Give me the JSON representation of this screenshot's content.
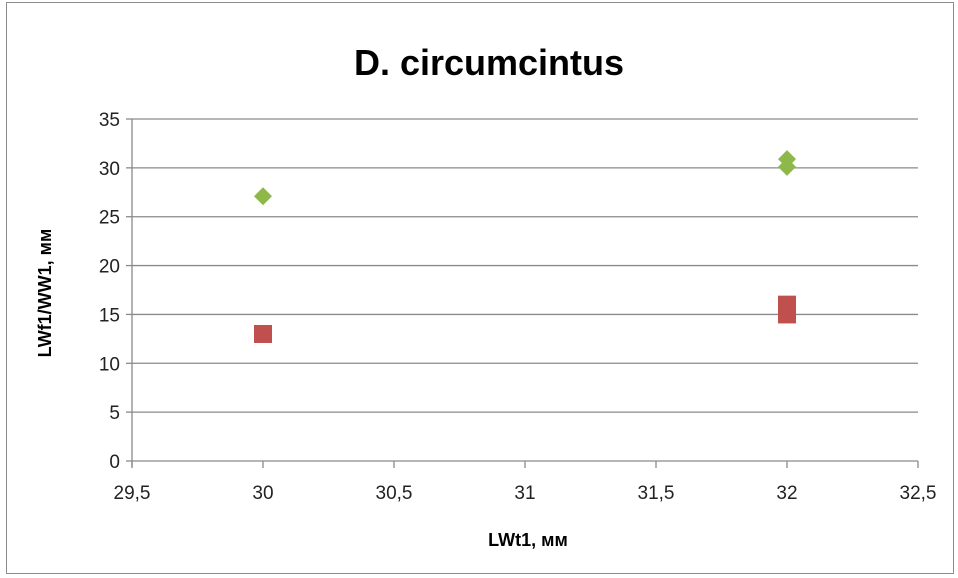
{
  "chart_data": {
    "type": "scatter",
    "title": "D. circumcintus",
    "xlabel": "LWt1, мм",
    "ylabel": "LWf1/WW1, мм",
    "xlim": [
      29.5,
      32.5
    ],
    "ylim": [
      0,
      35
    ],
    "x_ticks": [
      "29,5",
      "30",
      "30,5",
      "31",
      "31,5",
      "32",
      "32,5"
    ],
    "y_ticks": [
      "0",
      "5",
      "10",
      "15",
      "20",
      "25",
      "30",
      "35"
    ],
    "grid": "horizontal",
    "legend": "none",
    "series": [
      {
        "marker": "diamond",
        "color": "#8fb84a",
        "points": [
          [
            30,
            27.1
          ],
          [
            32,
            30.9
          ],
          [
            32,
            30.1
          ]
        ]
      },
      {
        "marker": "square",
        "color": "#c0504d",
        "points": [
          [
            30,
            13
          ],
          [
            32,
            16
          ],
          [
            32,
            15
          ]
        ]
      }
    ]
  }
}
